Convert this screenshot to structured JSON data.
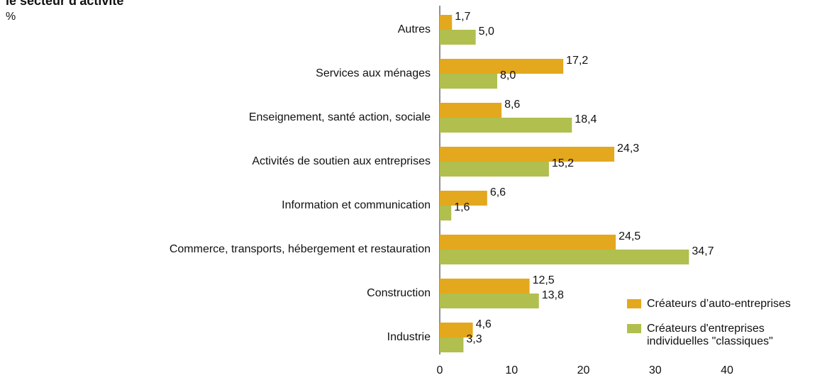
{
  "chart_data": {
    "type": "barh",
    "title": "le secteur d'activité",
    "subtitle": "%",
    "categories": [
      "Autres",
      "Services aux ménages",
      "Enseignement, santé action, sociale",
      "Activités de soutien aux entreprises",
      "Information et communication",
      "Commerce, transports, hébergement et restauration",
      "Construction",
      "Industrie"
    ],
    "series": [
      {
        "name": "Créateurs d’auto-entreprises",
        "color": "#e3a81e",
        "values": [
          1.7,
          17.2,
          8.6,
          24.3,
          6.6,
          24.5,
          12.5,
          4.6
        ],
        "value_labels": [
          "1,7",
          "17,2",
          "8,6",
          "24,3",
          "6,6",
          "24,5",
          "12,5",
          "4,6"
        ]
      },
      {
        "name": "Créateurs d'entreprises individuelles \"classiques\"",
        "color": "#b1bf4f",
        "values": [
          5.0,
          8.0,
          18.4,
          15.2,
          1.6,
          34.7,
          13.8,
          3.3
        ],
        "value_labels": [
          "5,0",
          "8,0",
          "18,4",
          "15,2",
          "1,6",
          "34,7",
          "13,8",
          "3,3"
        ]
      }
    ],
    "xlim": [
      0,
      40
    ],
    "xticks": [
      0,
      10,
      20,
      30,
      40
    ],
    "grid": false,
    "legend": "lower right"
  }
}
